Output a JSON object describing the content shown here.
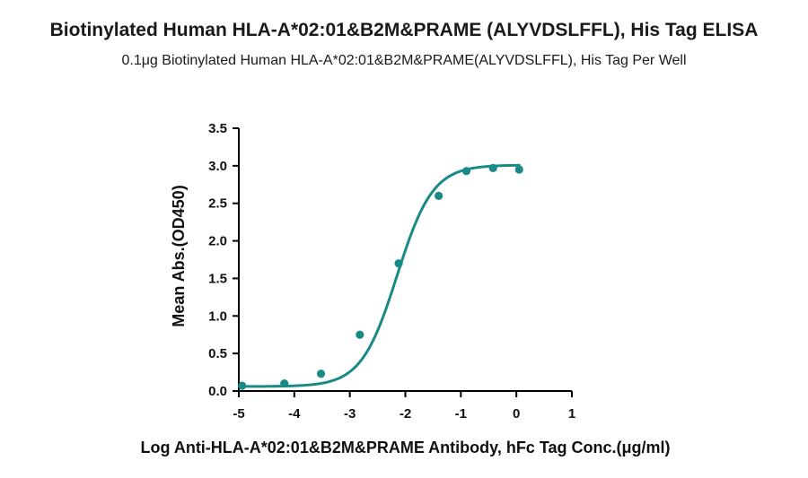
{
  "chart_data": {
    "type": "scatter",
    "title": "Biotinylated Human HLA-A*02:01&B2M&PRAME (ALYVDSLFFL), His Tag ELISA",
    "subtitle": "0.1μg Biotinylated Human HLA-A*02:01&B2M&PRAME(ALYVDSLFFL), His Tag Per Well",
    "xlabel": "Log Anti-HLA-A*02:01&B2M&PRAME Antibody, hFc Tag Conc.(μg/ml)",
    "ylabel": "Mean Abs.(OD450)",
    "xlim": [
      -5,
      1
    ],
    "ylim": [
      0,
      3.5
    ],
    "x_ticks": [
      "-5",
      "-4",
      "-3",
      "-2",
      "-1",
      "0",
      "1"
    ],
    "y_ticks": [
      "0.0",
      "0.5",
      "1.0",
      "1.5",
      "2.0",
      "2.5",
      "3.0",
      "3.5"
    ],
    "grid": false,
    "legend": "none",
    "series": [
      {
        "points": [
          {
            "x": -4.94,
            "y": 0.07
          },
          {
            "x": -4.18,
            "y": 0.1
          },
          {
            "x": -3.52,
            "y": 0.23
          },
          {
            "x": -2.82,
            "y": 0.75
          },
          {
            "x": -2.12,
            "y": 1.7
          },
          {
            "x": -1.4,
            "y": 2.6
          },
          {
            "x": -0.9,
            "y": 2.93
          },
          {
            "x": -0.42,
            "y": 2.97
          },
          {
            "x": 0.05,
            "y": 2.95
          }
        ],
        "fit": {
          "model": "4PL",
          "bottom": 0.06,
          "top": 3.01,
          "logEC50": -2.15,
          "hill": 1.35
        }
      }
    ],
    "color": "#1a8a87"
  }
}
